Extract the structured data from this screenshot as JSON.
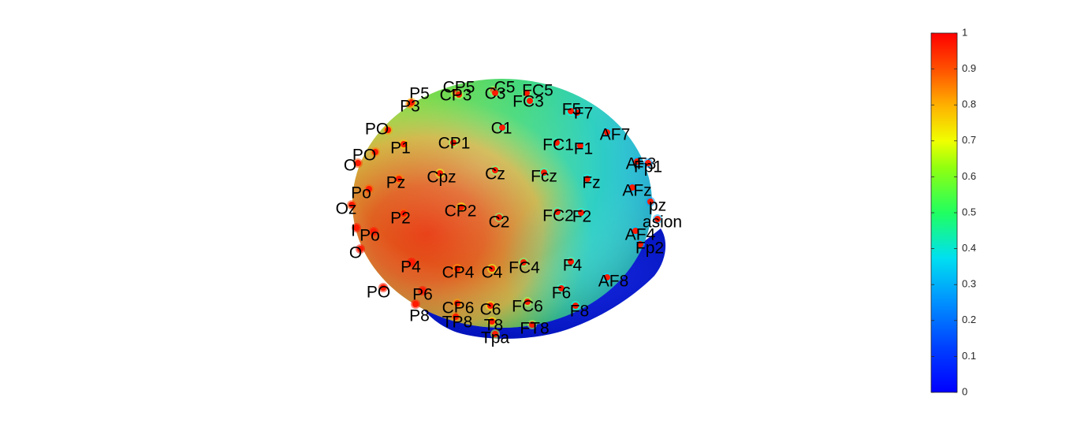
{
  "chart_data": {
    "type": "heatmap",
    "title": "",
    "subtitle": "",
    "description_view": "3D scalp surface topography with EEG electrode positions",
    "colorbar": {
      "colormap": "jet",
      "range": [
        0,
        1
      ],
      "ticks": [
        "0",
        "0.1",
        "0.2",
        "0.3",
        "0.4",
        "0.5",
        "0.6",
        "0.7",
        "0.8",
        "0.9",
        "1"
      ]
    },
    "colors": {
      "low": "#0000ff",
      "mid": "#00ff80",
      "high": "#ff0000",
      "electrode_marker": "#ff1a00",
      "label_text": "#000000"
    },
    "electrodes": [
      {
        "label": "P5",
        "value": 0.72
      },
      {
        "label": "CP5",
        "value": 0.6
      },
      {
        "label": "C5",
        "value": 0.55
      },
      {
        "label": "FC5",
        "value": 0.5
      },
      {
        "label": "P3",
        "value": 0.7
      },
      {
        "label": "CP3",
        "value": 0.55
      },
      {
        "label": "C3",
        "value": 0.5
      },
      {
        "label": "FC3",
        "value": 0.45
      },
      {
        "label": "F7",
        "value": 0.35
      },
      {
        "label": "F5",
        "value": 0.38
      },
      {
        "label": "PO",
        "value": 0.72
      },
      {
        "label": "C1",
        "value": 0.45
      },
      {
        "label": "AF7",
        "value": 0.33
      },
      {
        "label": "PO",
        "value": 0.75
      },
      {
        "label": "P1",
        "value": 0.68
      },
      {
        "label": "CP1",
        "value": 0.52
      },
      {
        "label": "FC1",
        "value": 0.42
      },
      {
        "label": "F1",
        "value": 0.36
      },
      {
        "label": "O",
        "value": 0.8
      },
      {
        "label": "Pz",
        "value": 0.74
      },
      {
        "label": "Cpz",
        "value": 0.6
      },
      {
        "label": "Cz",
        "value": 0.5
      },
      {
        "label": "Fcz",
        "value": 0.43
      },
      {
        "label": "Fz",
        "value": 0.38
      },
      {
        "label": "AF3",
        "value": 0.3
      },
      {
        "label": "Fp1",
        "value": 0.28
      },
      {
        "label": "Po",
        "value": 0.78
      },
      {
        "label": "AFz",
        "value": 0.3
      },
      {
        "label": "pz",
        "value": 0.28
      },
      {
        "label": "Oz",
        "value": 0.8
      },
      {
        "label": "P2",
        "value": 0.78
      },
      {
        "label": "CP2",
        "value": 0.62
      },
      {
        "label": "C2",
        "value": 0.5
      },
      {
        "label": "FC2",
        "value": 0.44
      },
      {
        "label": "F2",
        "value": 0.4
      },
      {
        "label": "asion",
        "value": 0.3
      },
      {
        "label": "I",
        "value": 0.85
      },
      {
        "label": "Po",
        "value": 0.85
      },
      {
        "label": "AF4",
        "value": 0.32
      },
      {
        "label": "O",
        "value": 0.86
      },
      {
        "label": "Fp2",
        "value": 0.3
      },
      {
        "label": "P4",
        "value": 0.86
      },
      {
        "label": "CP4",
        "value": 0.72
      },
      {
        "label": "C4",
        "value": 0.6
      },
      {
        "label": "FC4",
        "value": 0.5
      },
      {
        "label": "F4",
        "value": 0.44
      },
      {
        "label": "AF8",
        "value": 0.35
      },
      {
        "label": "PO",
        "value": 0.85
      },
      {
        "label": "P6",
        "value": 0.86
      },
      {
        "label": "F6",
        "value": 0.42
      },
      {
        "label": "CP6",
        "value": 0.72
      },
      {
        "label": "C6",
        "value": 0.65
      },
      {
        "label": "FC6",
        "value": 0.55
      },
      {
        "label": "F8",
        "value": 0.4
      },
      {
        "label": "P8",
        "value": 0.85
      },
      {
        "label": "TP8",
        "value": 0.75
      },
      {
        "label": "T8",
        "value": 0.65
      },
      {
        "label": "FT8",
        "value": 0.55
      },
      {
        "label": "Tpa",
        "value": 0.6
      }
    ]
  }
}
